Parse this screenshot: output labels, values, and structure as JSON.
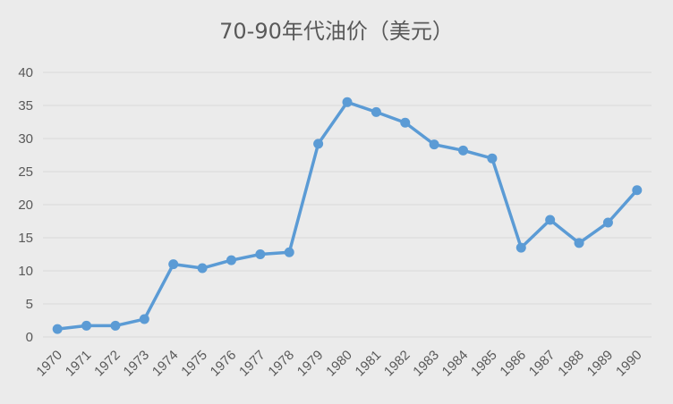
{
  "chart_data": {
    "type": "line",
    "title": "70-90年代油价（美元）",
    "xlabel": "",
    "ylabel": "",
    "ylim": [
      0,
      40
    ],
    "yticks": [
      0,
      5,
      10,
      15,
      20,
      25,
      30,
      35,
      40
    ],
    "categories": [
      "1970",
      "1971",
      "1972",
      "1973",
      "1974",
      "1975",
      "1976",
      "1977",
      "1978",
      "1979",
      "1980",
      "1981",
      "1982",
      "1983",
      "1984",
      "1985",
      "1986",
      "1987",
      "1988",
      "1989",
      "1990"
    ],
    "series": [
      {
        "values": [
          1.2,
          1.7,
          1.7,
          2.7,
          11.0,
          10.4,
          11.6,
          12.5,
          12.8,
          29.2,
          35.5,
          34.0,
          32.4,
          29.1,
          28.2,
          27.0,
          13.5,
          17.7,
          14.2,
          17.3,
          22.2
        ],
        "color": "#5b9bd5"
      }
    ],
    "grid": true,
    "legend": "none",
    "colors": {
      "background": "#ebebeb",
      "gridline": "#d9d9d9",
      "text": "#595959",
      "series": "#5b9bd5"
    }
  }
}
